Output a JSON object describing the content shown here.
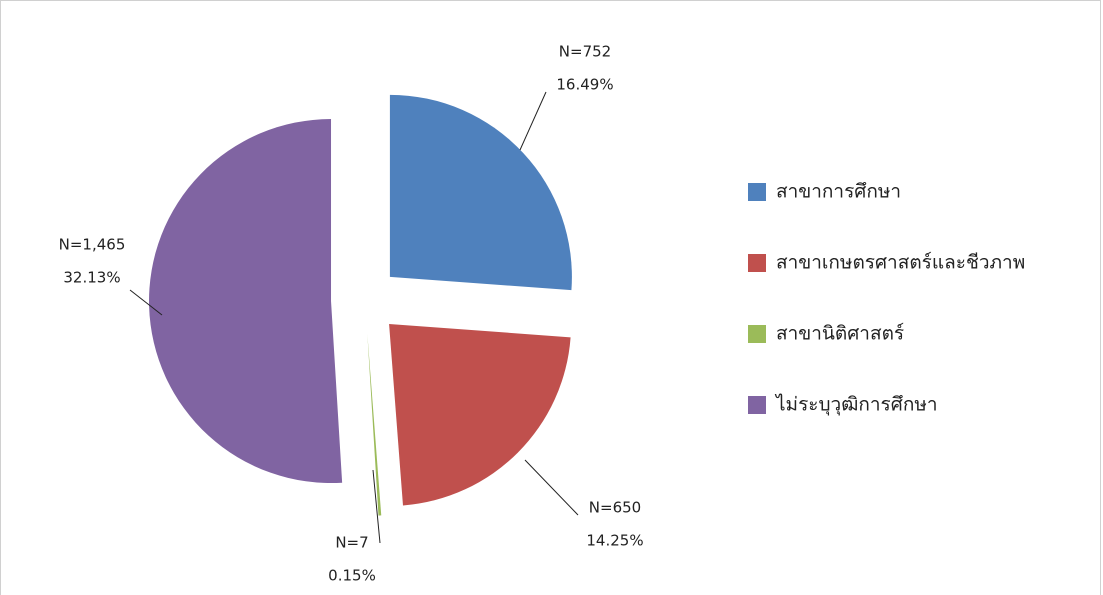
{
  "chart_data": {
    "type": "pie",
    "categories": [
      "สาขาการศึกษา",
      "สาขาเกษตรศาสตร์และชีวภาพ",
      "สาขานิติศาสตร์",
      "ไม่ระบุวุฒิการศึกษา"
    ],
    "values": [
      752,
      650,
      7,
      1465
    ],
    "value_labels": [
      "N=752",
      "N=650",
      "N=7",
      "N=1,465"
    ],
    "percentage_labels": [
      "16.49%",
      "14.25%",
      "0.15%",
      "32.13%"
    ],
    "colors": [
      "#4f81bd",
      "#c0504d",
      "#9bbb59",
      "#8064a2"
    ],
    "legend": "right"
  }
}
